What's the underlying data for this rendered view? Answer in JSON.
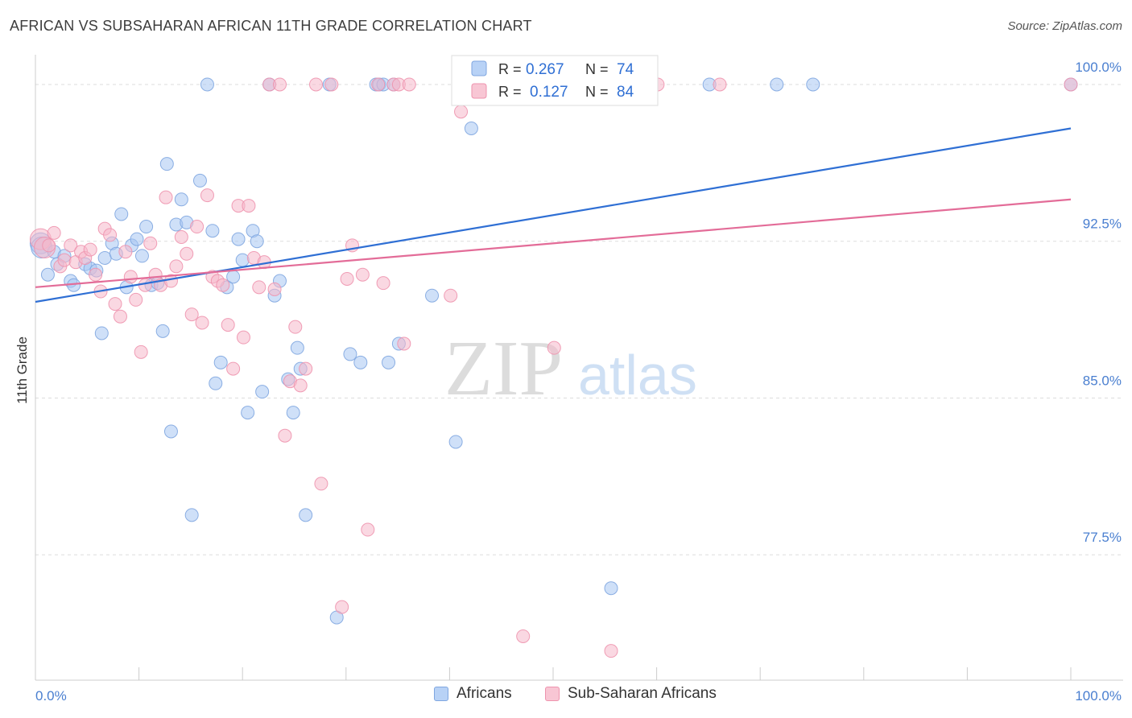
{
  "header": {
    "title": "AFRICAN VS SUBSAHARAN AFRICAN 11TH GRADE CORRELATION CHART",
    "source": "Source: ZipAtlas.com"
  },
  "watermark": {
    "zip": "ZIP",
    "atlas": "atlas"
  },
  "legend": {
    "africans": {
      "r_label": "R =",
      "r_value": "0.267",
      "n_label": "N =",
      "n_value": "74"
    },
    "subsaharan": {
      "r_label": "R =",
      "r_value": "0.127",
      "n_label": "N =",
      "n_value": "84"
    }
  },
  "bottom_legend": {
    "africans": "Africans",
    "subsaharan": "Sub-Saharan Africans"
  },
  "colors": {
    "africans_fill": "#a8c6f2",
    "africans_stroke": "#7fa6e0",
    "africans_line": "#2f6fd4",
    "subsaharan_fill": "#f6b8ca",
    "subsaharan_stroke": "#ee93ae",
    "subsaharan_line": "#e36c98",
    "tick_label": "#4a7fd0",
    "grid": "#dddddd"
  },
  "chart_data": {
    "type": "scatter",
    "title": "AFRICAN VS SUBSAHARAN AFRICAN 11TH GRADE CORRELATION CHART",
    "xlabel": "",
    "ylabel": "11th Grade",
    "xlim": [
      0,
      100
    ],
    "ylim": [
      71.5,
      101
    ],
    "x_tick_labels": [
      "0.0%",
      "100.0%"
    ],
    "y_ticks": [
      77.5,
      85.0,
      92.5,
      100.0
    ],
    "y_tick_labels": [
      "77.5%",
      "85.0%",
      "92.5%",
      "100.0%"
    ],
    "grid": true,
    "series": [
      {
        "name": "Africans",
        "r": 0.267,
        "n": 74,
        "trend": {
          "x": [
            0,
            100
          ],
          "y": [
            89.6,
            97.9
          ]
        },
        "points": [
          [
            0.5,
            92.4
          ],
          [
            0.6,
            92.2
          ],
          [
            1.2,
            90.9
          ],
          [
            1.8,
            92.0
          ],
          [
            2.1,
            91.4
          ],
          [
            2.8,
            91.8
          ],
          [
            3.4,
            90.6
          ],
          [
            3.7,
            90.4
          ],
          [
            4.8,
            91.4
          ],
          [
            5.3,
            91.2
          ],
          [
            5.9,
            91.1
          ],
          [
            6.4,
            88.1
          ],
          [
            6.7,
            91.7
          ],
          [
            7.4,
            92.4
          ],
          [
            7.8,
            91.9
          ],
          [
            8.3,
            93.8
          ],
          [
            8.8,
            90.3
          ],
          [
            9.3,
            92.3
          ],
          [
            9.8,
            92.6
          ],
          [
            10.3,
            91.8
          ],
          [
            10.7,
            93.2
          ],
          [
            11.2,
            90.4
          ],
          [
            11.8,
            90.5
          ],
          [
            12.3,
            88.2
          ],
          [
            12.7,
            96.2
          ],
          [
            13.1,
            83.4
          ],
          [
            13.6,
            93.3
          ],
          [
            14.1,
            94.5
          ],
          [
            14.6,
            93.4
          ],
          [
            15.1,
            79.4
          ],
          [
            15.9,
            95.4
          ],
          [
            16.6,
            100.0
          ],
          [
            17.1,
            93.0
          ],
          [
            17.4,
            85.7
          ],
          [
            17.9,
            86.7
          ],
          [
            18.5,
            90.3
          ],
          [
            19.1,
            90.8
          ],
          [
            19.6,
            92.6
          ],
          [
            20.0,
            91.6
          ],
          [
            20.5,
            84.3
          ],
          [
            21.0,
            93.0
          ],
          [
            21.4,
            92.5
          ],
          [
            21.9,
            85.3
          ],
          [
            22.6,
            100.0
          ],
          [
            23.1,
            89.9
          ],
          [
            23.6,
            90.6
          ],
          [
            24.4,
            85.9
          ],
          [
            24.9,
            84.3
          ],
          [
            25.3,
            87.4
          ],
          [
            25.6,
            86.4
          ],
          [
            26.1,
            79.4
          ],
          [
            28.4,
            100.0
          ],
          [
            29.1,
            74.5
          ],
          [
            30.4,
            87.1
          ],
          [
            31.4,
            86.7
          ],
          [
            32.9,
            100.0
          ],
          [
            33.2,
            100.0
          ],
          [
            33.6,
            100.0
          ],
          [
            34.1,
            86.7
          ],
          [
            34.6,
            100.0
          ],
          [
            35.1,
            87.6
          ],
          [
            38.3,
            89.9
          ],
          [
            40.6,
            82.9
          ],
          [
            41.6,
            100.0
          ],
          [
            42.1,
            97.9
          ],
          [
            52.1,
            100.0
          ],
          [
            55.6,
            75.9
          ],
          [
            65.1,
            100.0
          ],
          [
            71.6,
            100.0
          ],
          [
            75.1,
            100.0
          ],
          [
            100.0,
            100.0
          ]
        ]
      },
      {
        "name": "Sub-Saharan Africans",
        "r": 0.127,
        "n": 84,
        "trend": {
          "x": [
            0,
            100
          ],
          "y": [
            90.3,
            94.5
          ]
        },
        "points": [
          [
            0.5,
            92.6
          ],
          [
            0.9,
            92.2
          ],
          [
            1.3,
            92.3
          ],
          [
            1.8,
            92.9
          ],
          [
            2.4,
            91.3
          ],
          [
            2.8,
            91.6
          ],
          [
            3.4,
            92.3
          ],
          [
            3.9,
            91.5
          ],
          [
            4.4,
            92.0
          ],
          [
            4.8,
            91.7
          ],
          [
            5.3,
            92.1
          ],
          [
            5.8,
            90.9
          ],
          [
            6.3,
            90.1
          ],
          [
            6.7,
            93.1
          ],
          [
            7.2,
            92.8
          ],
          [
            7.7,
            89.5
          ],
          [
            8.2,
            88.9
          ],
          [
            8.7,
            92.0
          ],
          [
            9.2,
            90.8
          ],
          [
            9.7,
            89.7
          ],
          [
            10.2,
            87.2
          ],
          [
            10.6,
            90.4
          ],
          [
            11.1,
            92.4
          ],
          [
            11.6,
            90.9
          ],
          [
            12.1,
            90.4
          ],
          [
            12.6,
            94.6
          ],
          [
            13.1,
            90.6
          ],
          [
            13.6,
            91.3
          ],
          [
            14.1,
            92.7
          ],
          [
            14.6,
            91.9
          ],
          [
            15.1,
            89.0
          ],
          [
            15.6,
            93.2
          ],
          [
            16.1,
            88.6
          ],
          [
            16.6,
            94.7
          ],
          [
            17.1,
            90.8
          ],
          [
            17.6,
            90.6
          ],
          [
            18.1,
            90.4
          ],
          [
            18.6,
            88.5
          ],
          [
            19.1,
            86.4
          ],
          [
            19.6,
            94.2
          ],
          [
            20.1,
            87.9
          ],
          [
            20.6,
            94.2
          ],
          [
            21.1,
            91.7
          ],
          [
            21.6,
            90.3
          ],
          [
            22.1,
            91.5
          ],
          [
            22.6,
            100.0
          ],
          [
            23.1,
            90.2
          ],
          [
            23.6,
            100.0
          ],
          [
            24.1,
            83.2
          ],
          [
            24.6,
            85.8
          ],
          [
            25.1,
            88.4
          ],
          [
            25.6,
            85.6
          ],
          [
            26.1,
            86.4
          ],
          [
            27.1,
            100.0
          ],
          [
            27.6,
            80.9
          ],
          [
            28.6,
            100.0
          ],
          [
            29.6,
            75.0
          ],
          [
            30.1,
            90.7
          ],
          [
            30.6,
            92.3
          ],
          [
            31.6,
            90.9
          ],
          [
            32.1,
            78.7
          ],
          [
            33.1,
            100.0
          ],
          [
            33.6,
            90.5
          ],
          [
            34.6,
            100.0
          ],
          [
            35.1,
            100.0
          ],
          [
            35.6,
            87.6
          ],
          [
            36.1,
            100.0
          ],
          [
            40.1,
            89.9
          ],
          [
            41.1,
            98.7
          ],
          [
            47.1,
            73.6
          ],
          [
            50.1,
            87.4
          ],
          [
            52.1,
            100.0
          ],
          [
            55.6,
            72.9
          ],
          [
            60.1,
            100.0
          ],
          [
            66.1,
            100.0
          ],
          [
            100.0,
            100.0
          ]
        ]
      }
    ]
  }
}
